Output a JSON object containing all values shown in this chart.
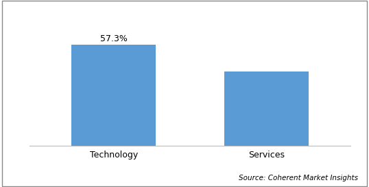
{
  "categories": [
    "Technology",
    "Services"
  ],
  "values": [
    57.3,
    42.0
  ],
  "bar_color": "#5B9BD5",
  "bar_label": "57.3%",
  "bar_label_index": 0,
  "source_text": "Source: Coherent Market Insights",
  "background_color": "#ffffff",
  "ylim": [
    0,
    70
  ],
  "bar_width": 0.55,
  "label_fontsize": 9,
  "tick_fontsize": 9,
  "source_fontsize": 7.5
}
